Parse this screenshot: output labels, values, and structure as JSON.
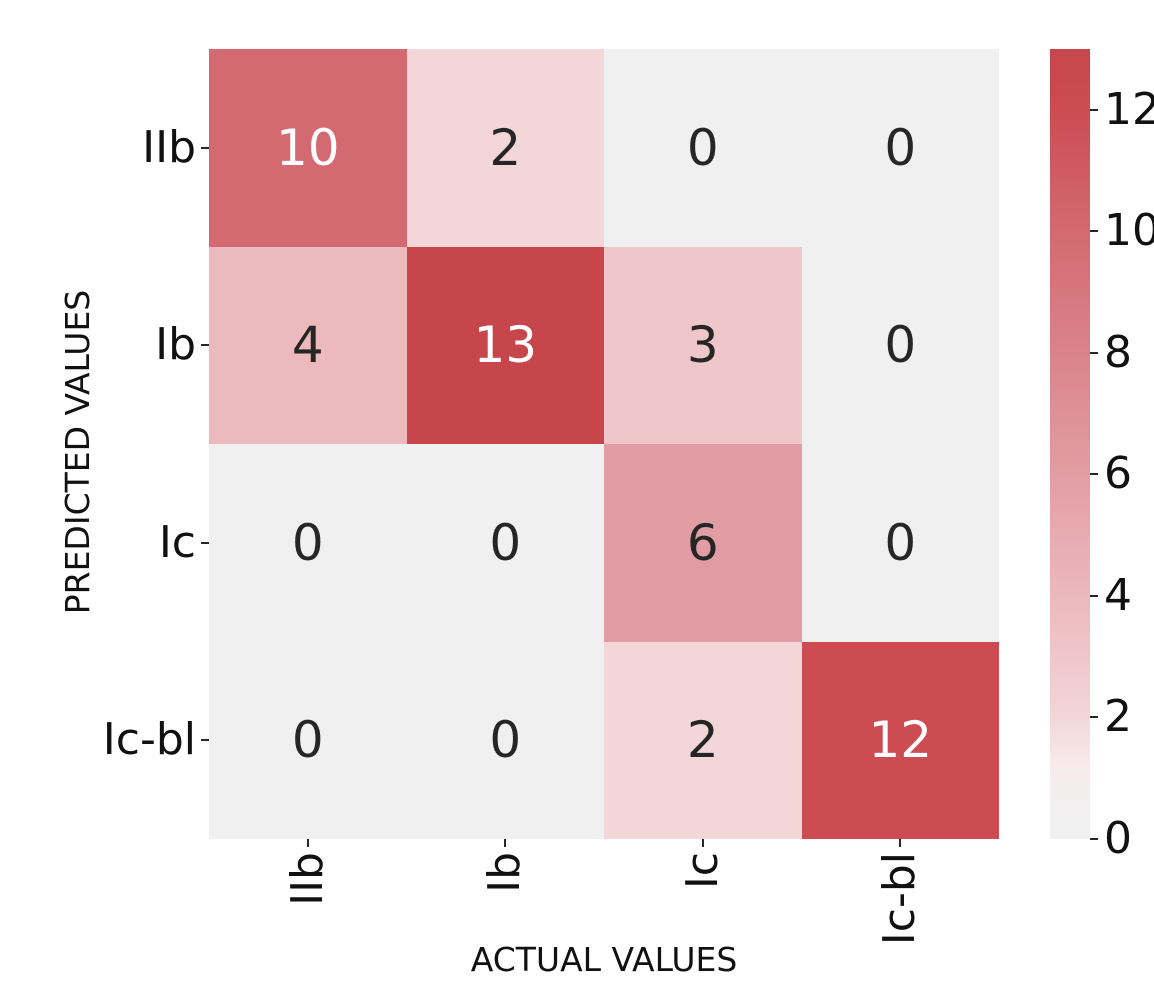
{
  "figure": {
    "xlabel": "ACTUAL VALUES",
    "ylabel": "PREDICTED VALUES"
  },
  "chart_data": {
    "type": "heatmap",
    "title": "",
    "xlabel": "ACTUAL VALUES",
    "ylabel": "PREDICTED VALUES",
    "x_categories": [
      "IIb",
      "Ib",
      "Ic",
      "Ic-bl"
    ],
    "y_categories": [
      "IIb",
      "Ib",
      "Ic",
      "Ic-bl"
    ],
    "values": [
      [
        10,
        2,
        0,
        0
      ],
      [
        4,
        13,
        3,
        0
      ],
      [
        0,
        0,
        6,
        0
      ],
      [
        0,
        0,
        2,
        12
      ]
    ],
    "vmin": 0,
    "vmax": 13,
    "colorbar_ticks": [
      0,
      2,
      4,
      6,
      8,
      10,
      12
    ],
    "legend_position": "right-colorbar",
    "grid": false,
    "colormap_anchors": [
      [
        0,
        "#f1f0f0"
      ],
      [
        0.6,
        "#f1efef"
      ],
      [
        1.2,
        "#f8ebec"
      ],
      [
        2,
        "#f2d6d8"
      ],
      [
        3,
        "#efc6ca"
      ],
      [
        4,
        "#ecb9bd"
      ],
      [
        6,
        "#e19da3"
      ],
      [
        10,
        "#d36a71"
      ],
      [
        12,
        "#cc4c52"
      ],
      [
        13,
        "#c7464c"
      ]
    ],
    "annotation_text_dark": "#262626",
    "annotation_text_light": "#ffffff"
  }
}
